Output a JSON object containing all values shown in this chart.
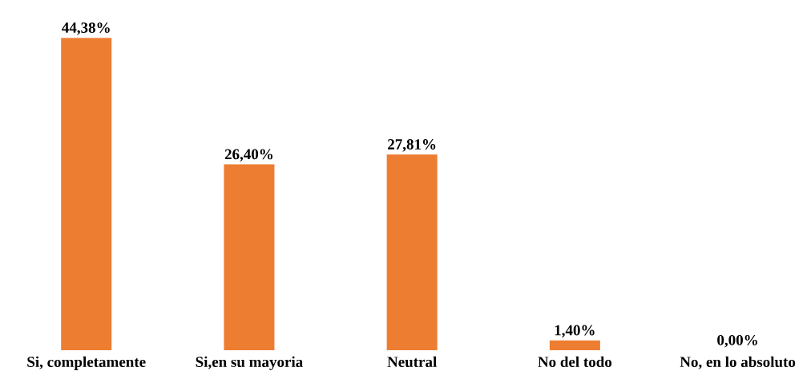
{
  "chart_data": {
    "type": "bar",
    "categories": [
      "Si, completamente",
      "Si,en su mayoria",
      "Neutral",
      "No del todo",
      "No, en lo absoluto"
    ],
    "values": [
      44.38,
      26.4,
      27.81,
      1.4,
      0.0
    ],
    "value_labels": [
      "44,38%",
      "26,40%",
      "27,81%",
      "1,40%",
      "0,00%"
    ],
    "color": "#ed7d31"
  }
}
